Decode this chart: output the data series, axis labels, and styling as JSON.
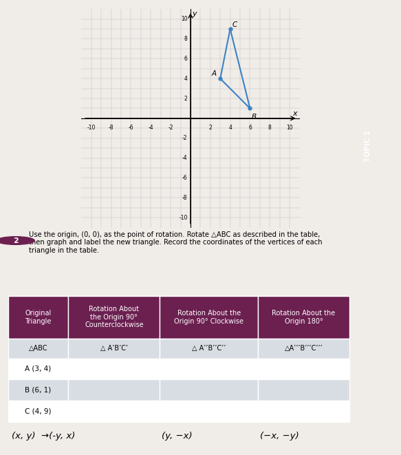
{
  "triangle_vertices": {
    "A": [
      3,
      4
    ],
    "B": [
      6,
      1
    ],
    "C": [
      4,
      9
    ]
  },
  "triangle_color": "#3b82c4",
  "grid_range": [
    -10,
    10
  ],
  "axis_ticks": [
    -10,
    -8,
    -6,
    -4,
    -2,
    0,
    2,
    4,
    6,
    8,
    10
  ],
  "header_bg": "#6b2050",
  "header_fg": "#ffffff",
  "row_bg_light": "#d8dde3",
  "row_bg_white": "#ffffff",
  "table_header_row1": [
    "Original\nTriangle",
    "Rotation About\nthe Origin 90°\nCounterclockwise",
    "Rotation About the\nOrigin 90° Clockwise",
    "Rotation About the\nOrigin 180°"
  ],
  "table_header_row2": [
    "△ABC",
    "△ A’B’C’",
    "△ A’’B’’C’’",
    "△A’’’B’’’C’’’"
  ],
  "table_data_rows": [
    [
      "A (3, 4)",
      "",
      "",
      ""
    ],
    [
      "B (6, 1)",
      "",
      "",
      ""
    ],
    [
      "C (4, 9)",
      "",
      "",
      ""
    ]
  ],
  "bottom_text_col1": "(x, y)  →(-y, x)",
  "bottom_text_col2": "(y, −x)",
  "bottom_text_col3": "(−x, −y)",
  "instruction_text": "Use the origin, (0, 0), as the point of rotation. Rotate △ABC as described in the table,\nthen graph and label the new triangle. Record the coordinates of the vertices of each\ntriangle in the table.",
  "topic_label": "TOPIC 1",
  "bg_color": "#e5e0db",
  "page_color": "#f0ece8",
  "topic_bar_color": "#6b2050"
}
